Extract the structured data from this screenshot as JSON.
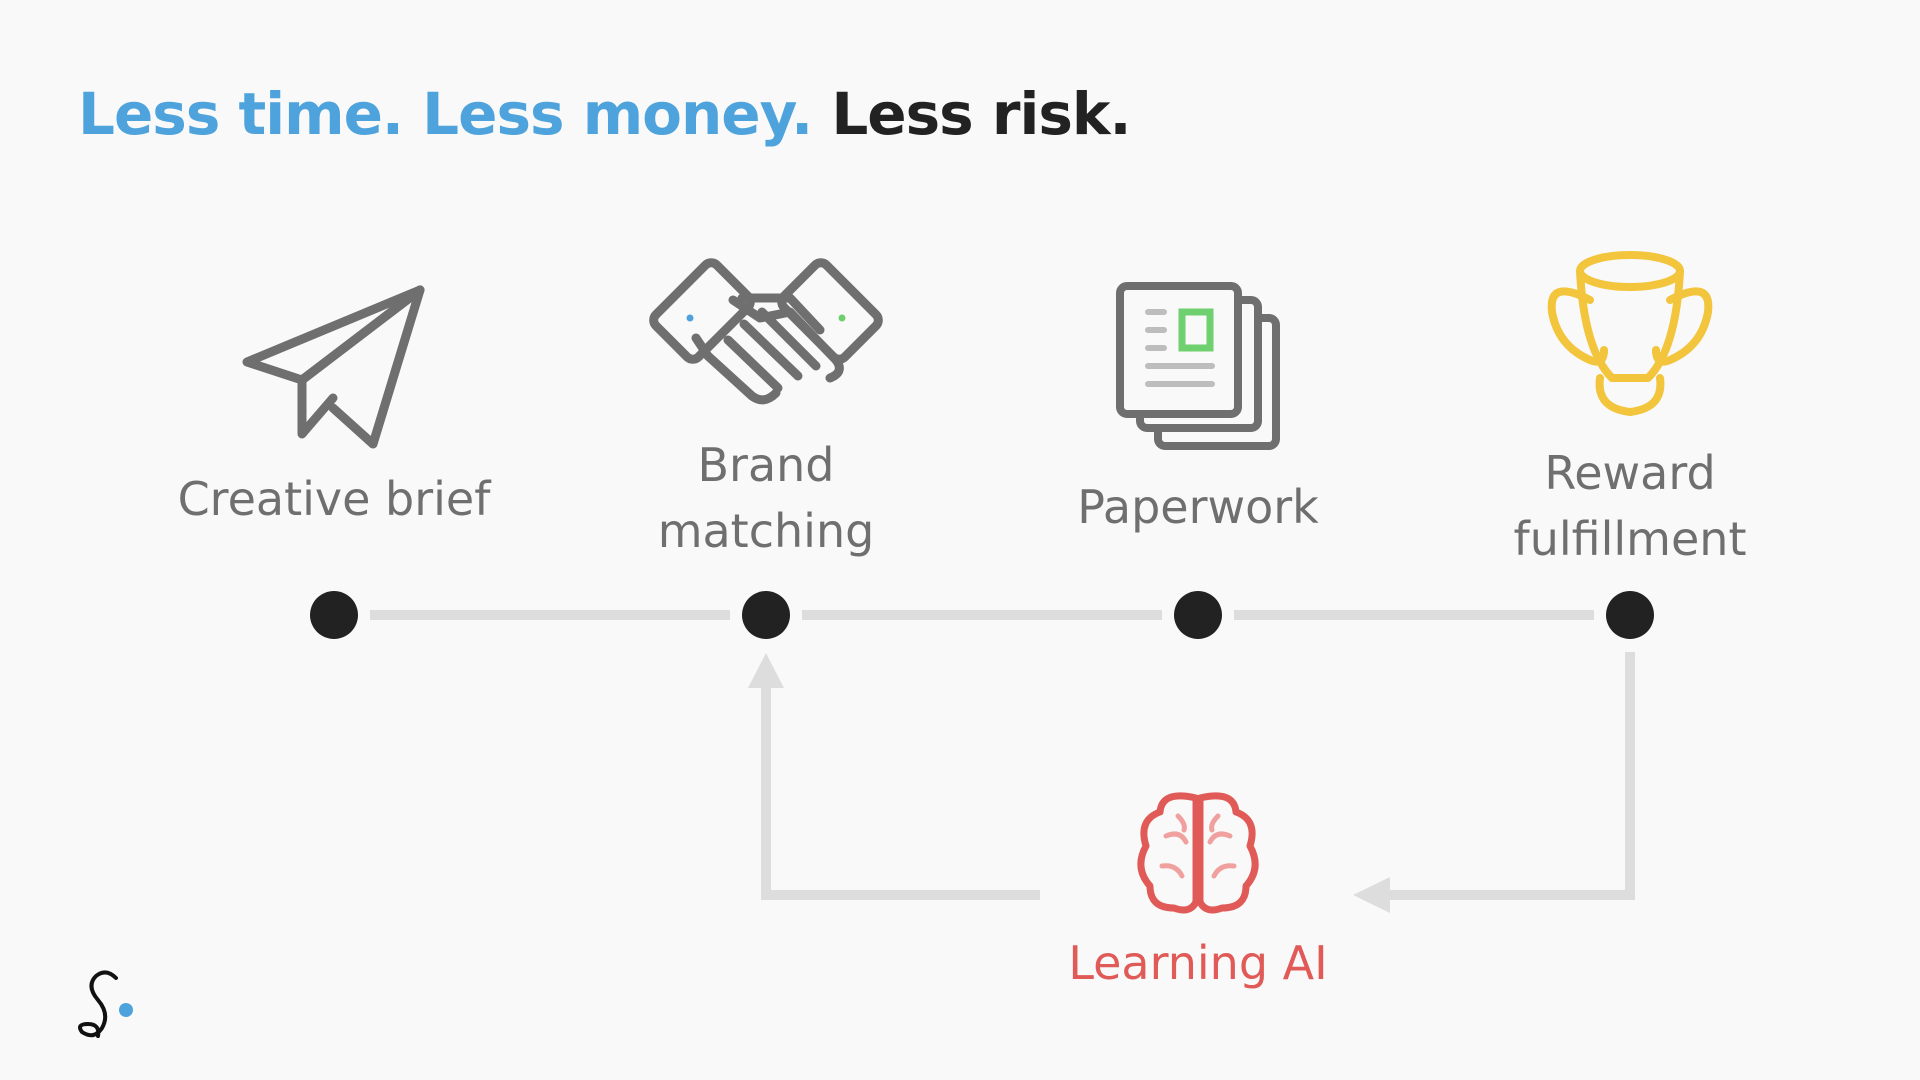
{
  "title": {
    "part1": "Less time.",
    "part2": "Less money.",
    "part3": "Less risk."
  },
  "steps": [
    {
      "label_lines": [
        "Creative brief"
      ],
      "icon": "paper-plane-icon",
      "color": "#6f6f6f"
    },
    {
      "label_lines": [
        "Brand",
        "matching"
      ],
      "icon": "handshake-icon",
      "color": "#6f6f6f"
    },
    {
      "label_lines": [
        "Paperwork"
      ],
      "icon": "documents-icon",
      "color": "#6f6f6f"
    },
    {
      "label_lines": [
        "Reward",
        "fulfillment"
      ],
      "icon": "trophy-icon",
      "color": "#f2c53d"
    }
  ],
  "feedback": {
    "label": "Learning AI",
    "icon": "brain-icon",
    "color": "#e05a57"
  },
  "colors": {
    "title_accent": "#4ea3dc",
    "title_dark": "#222222",
    "node": "#222222",
    "connector": "#dddddd",
    "label": "#6f6f6f"
  },
  "logo": {
    "icon": "brand-logo-icon",
    "dot_color": "#4ea3dc"
  }
}
